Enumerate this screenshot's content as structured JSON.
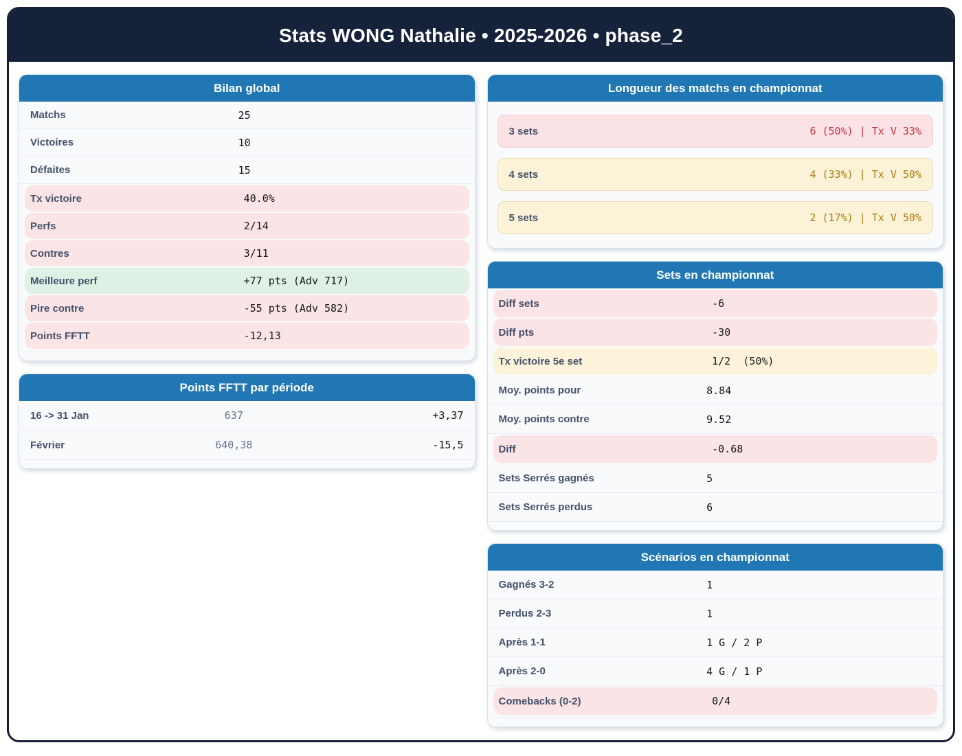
{
  "header": {
    "title": "Stats WONG Nathalie • 2025-2026 • phase_2"
  },
  "palette": {
    "navy_header": "#16213a",
    "card_header_blue": "#2177b4",
    "row_pink": "#fbe4e5",
    "row_green": "#dff0e5",
    "row_yellow": "#fcf3da",
    "pill_red_text": "#c23343",
    "pill_amber_text": "#a87e12",
    "label_color": "#44516b"
  },
  "bilan": {
    "title": "Bilan global",
    "rows": [
      {
        "label": "Matchs",
        "value": "25",
        "highlight": "none"
      },
      {
        "label": "Victoires",
        "value": "10",
        "highlight": "none"
      },
      {
        "label": "Défaites",
        "value": "15",
        "highlight": "none"
      },
      {
        "label": "Tx victoire",
        "value": "40.0%",
        "highlight": "pink"
      },
      {
        "label": "Perfs",
        "value": "2/14",
        "highlight": "pink"
      },
      {
        "label": "Contres",
        "value": "3/11",
        "highlight": "pink"
      },
      {
        "label": "Meilleure perf",
        "value": "+77 pts (Adv 717)",
        "highlight": "green"
      },
      {
        "label": "Pire contre",
        "value": "-55 pts (Adv 582)",
        "highlight": "pink"
      },
      {
        "label": "Points FFTT",
        "value": "-12,13",
        "highlight": "pink"
      }
    ]
  },
  "periodes": {
    "title": "Points FFTT par période",
    "rows": [
      {
        "label": "16 -> 31 Jan",
        "points": "637",
        "delta": "+3,37"
      },
      {
        "label": "Février",
        "points": "640,38",
        "delta": "-15,5"
      }
    ]
  },
  "longueur": {
    "title": "Longueur des matchs en championnat",
    "rows": [
      {
        "label": "3 sets",
        "value": "6 (50%) | Tx V 33%",
        "tone": "red"
      },
      {
        "label": "4 sets",
        "value": "4 (33%) | Tx V 50%",
        "tone": "amber"
      },
      {
        "label": "5 sets",
        "value": "2 (17%) | Tx V 50%",
        "tone": "amber"
      }
    ]
  },
  "sets": {
    "title": "Sets en championnat",
    "rows": [
      {
        "label": "Diff sets",
        "value": "-6",
        "highlight": "pink"
      },
      {
        "label": "Diff pts",
        "value": "-30",
        "highlight": "pink"
      },
      {
        "label": "Tx victoire 5e set",
        "value": "1/2  (50%)",
        "highlight": "yellow"
      },
      {
        "label": "Moy. points pour",
        "value": "8.84",
        "highlight": "none"
      },
      {
        "label": "Moy. points contre",
        "value": "9.52",
        "highlight": "none"
      },
      {
        "label": "Diff",
        "value": "-0.68",
        "highlight": "pink"
      },
      {
        "label": "Sets Serrés gagnés",
        "value": "5",
        "highlight": "none"
      },
      {
        "label": "Sets Serrés perdus",
        "value": "6",
        "highlight": "none"
      }
    ]
  },
  "scenarios": {
    "title": "Scénarios en championnat",
    "rows": [
      {
        "label": "Gagnés 3-2",
        "value": "1",
        "highlight": "none"
      },
      {
        "label": "Perdus 2-3",
        "value": "1",
        "highlight": "none"
      },
      {
        "label": "Après 1-1",
        "value": "1 G / 2 P",
        "highlight": "none"
      },
      {
        "label": "Après 2-0",
        "value": "4 G / 1 P",
        "highlight": "none"
      },
      {
        "label": "Comebacks (0-2)",
        "value": "0/4",
        "highlight": "pink"
      }
    ]
  }
}
